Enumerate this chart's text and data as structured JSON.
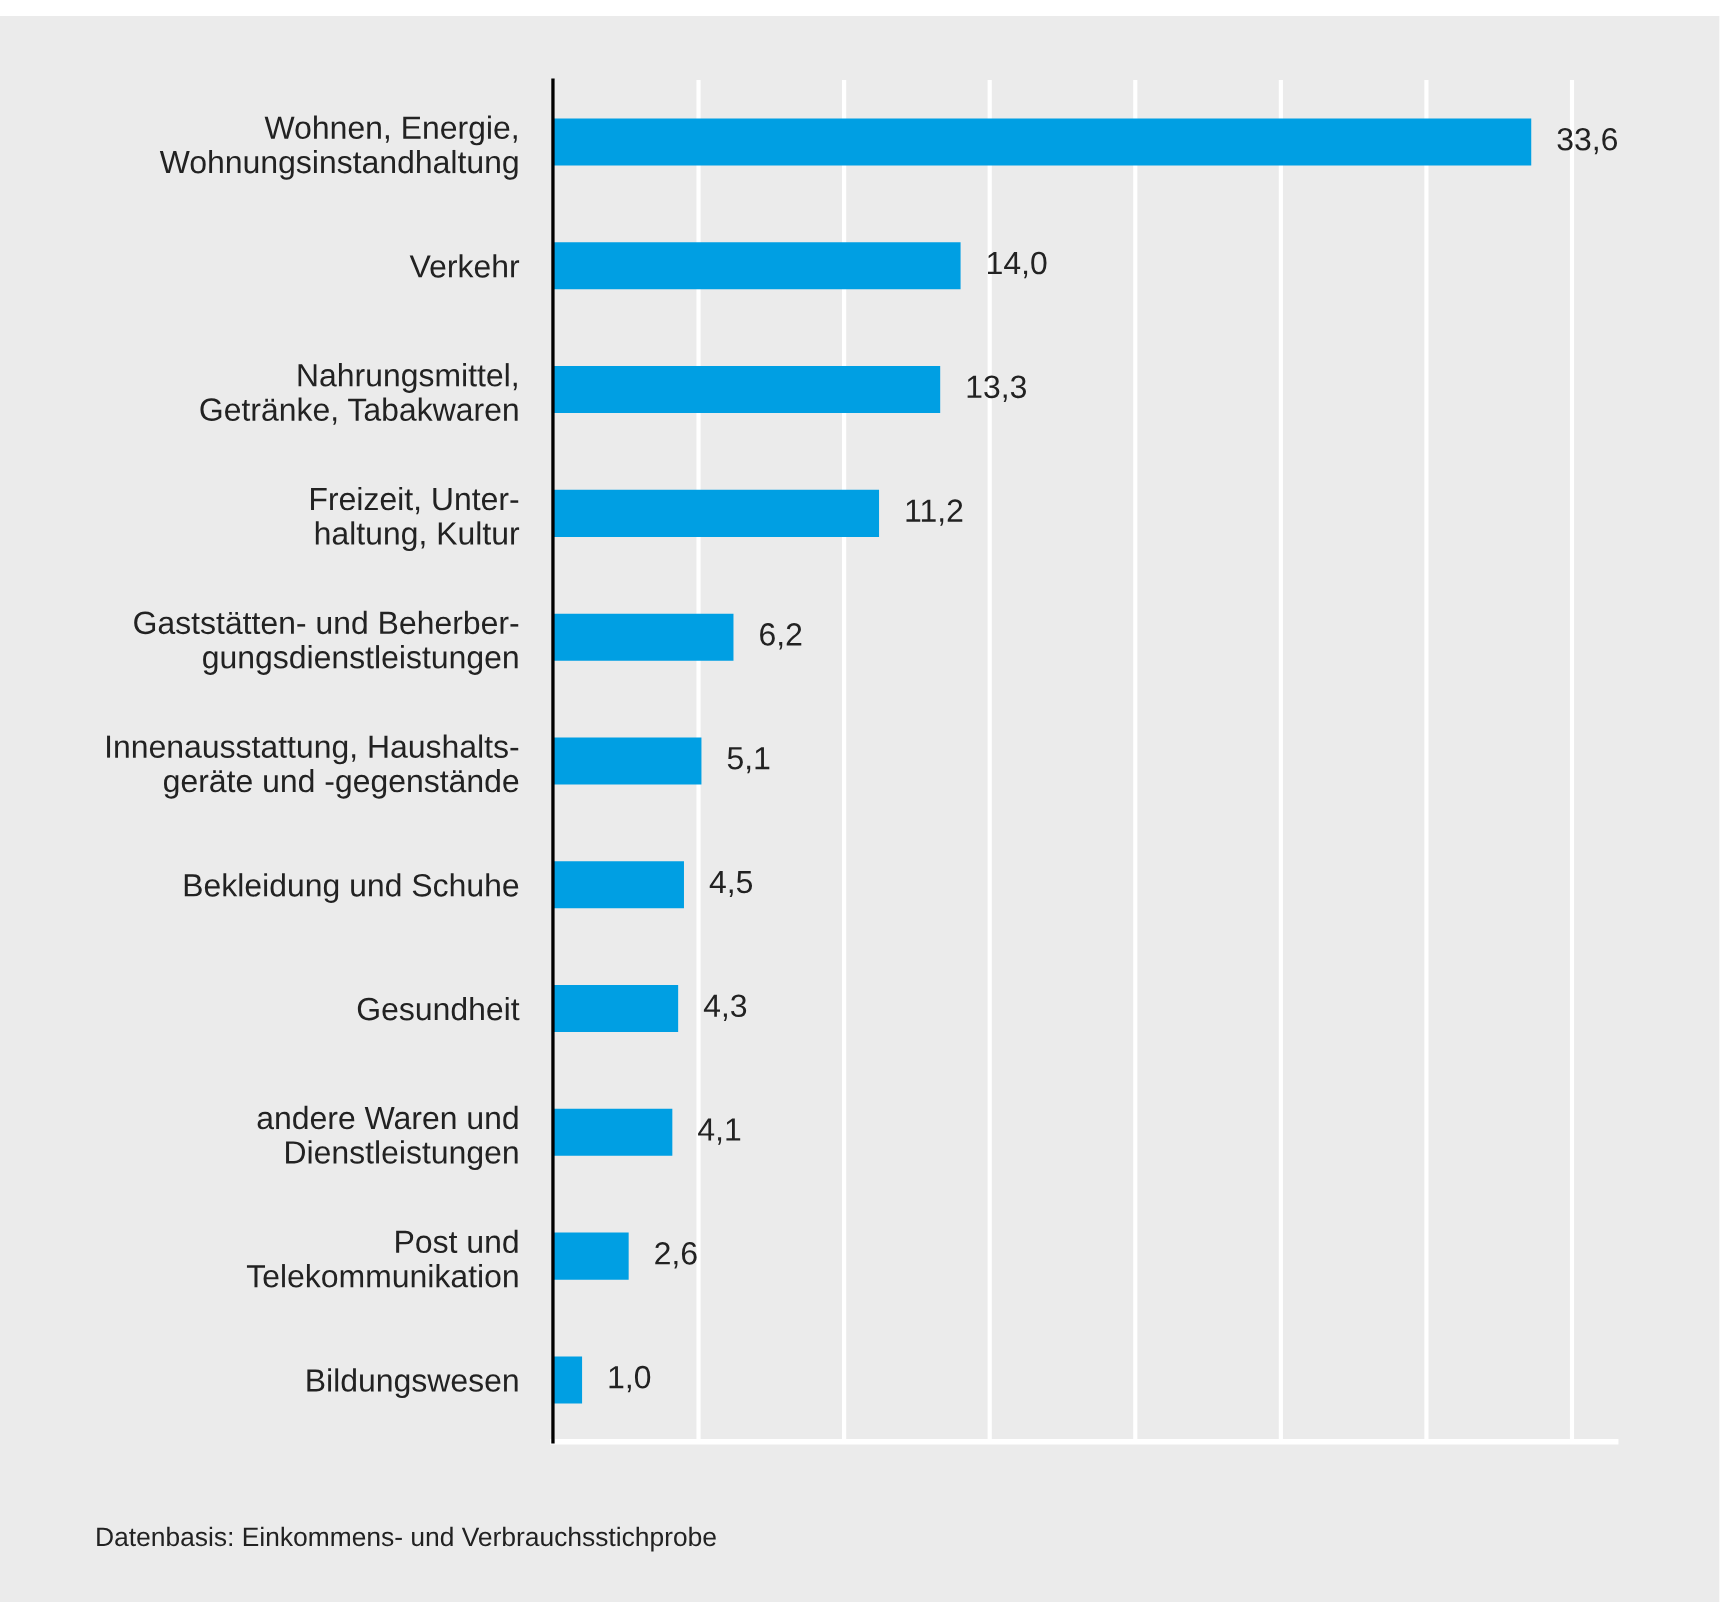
{
  "chart_data": {
    "type": "bar",
    "orientation": "horizontal",
    "categories": [
      "Wohnen, Energie,\nWohnungsinstandhaltung",
      "Verkehr",
      "Nahrungsmittel,\nGetränke, Tabakwaren",
      "Freizeit, Unter-\nhaltung, Kultur",
      "Gaststätten- und Beherber-\ngungsdienstleistungen",
      "Innenausstattung, Haushalts-\ngeräte und -gegenstände",
      "Bekleidung und Schuhe",
      "Gesundheit",
      "andere Waren und\nDienstleistungen",
      "Post und\nTelekommunikation",
      "Bildungswesen"
    ],
    "values": [
      33.6,
      14.0,
      13.3,
      11.2,
      6.2,
      5.1,
      4.5,
      4.3,
      4.1,
      2.6,
      1.0
    ],
    "value_labels": [
      "33,6",
      "14,0",
      "13,3",
      "11,2",
      "6,2",
      "5,1",
      "4,5",
      "4,3",
      "4,1",
      "2,6",
      "1,0"
    ],
    "color": "#009fe3",
    "xlim": [
      0,
      36.5
    ],
    "xticks": [
      {
        "value": 0,
        "label": null
      },
      {
        "value": 5,
        "label": null
      },
      {
        "value": 10,
        "label": null
      },
      {
        "value": 15,
        "label": null
      },
      {
        "value": 20,
        "label": null
      },
      {
        "value": 25,
        "label": null
      },
      {
        "value": 30,
        "label": null
      },
      {
        "value": 35,
        "label": null
      }
    ],
    "grid": "x",
    "tick_labels": "y",
    "annotations": [
      "Datenbasis: Einkommens- und Verbrauchsstichprobe"
    ]
  }
}
